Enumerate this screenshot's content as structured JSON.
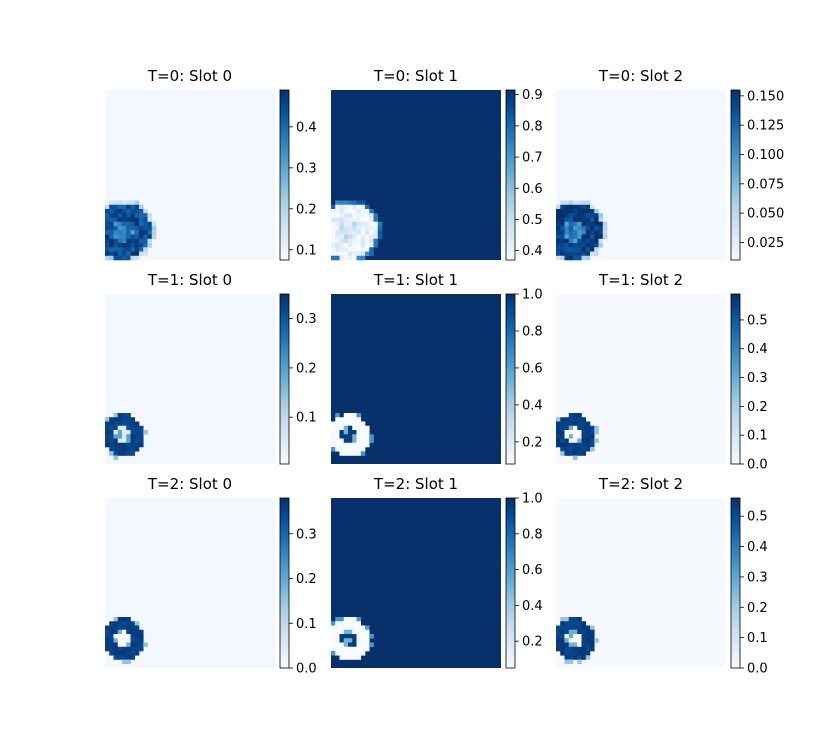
{
  "chart_data": [
    {
      "type": "heatmap",
      "title": "T=0: Slot 0",
      "colormap": "Blues",
      "colorbar_range": [
        0.075,
        0.49
      ],
      "colorbar_ticks": [
        0.1,
        0.2,
        0.3,
        0.4
      ],
      "colorbar_tick_labels": [
        "0.1",
        "0.2",
        "0.3",
        "0.4"
      ],
      "background_value": 0.085,
      "ring_value": 0.45,
      "ring_interior_value": 0.36,
      "blob_style": "soft"
    },
    {
      "type": "heatmap",
      "title": "T=0: Slot 1",
      "colormap": "Blues",
      "colorbar_range": [
        0.37,
        0.915
      ],
      "colorbar_ticks": [
        0.4,
        0.5,
        0.6,
        0.7,
        0.8,
        0.9
      ],
      "colorbar_tick_labels": [
        "0.4",
        "0.5",
        "0.6",
        "0.7",
        "0.8",
        "0.9"
      ],
      "background_value": 0.915,
      "ring_value": 0.4,
      "ring_interior_value": 0.48,
      "blob_style": "soft"
    },
    {
      "type": "heatmap",
      "title": "T=0: Slot 2",
      "colormap": "Blues",
      "colorbar_range": [
        0.01,
        0.155
      ],
      "colorbar_ticks": [
        0.025,
        0.05,
        0.075,
        0.1,
        0.125,
        0.15
      ],
      "colorbar_tick_labels": [
        "0.025",
        "0.050",
        "0.075",
        "0.100",
        "0.125",
        "0.150"
      ],
      "background_value": 0.013,
      "ring_value": 0.15,
      "ring_interior_value": 0.11,
      "blob_style": "soft"
    },
    {
      "type": "heatmap",
      "title": "T=1: Slot 0",
      "colormap": "Blues",
      "colorbar_range": [
        0.005,
        0.35
      ],
      "colorbar_ticks": [
        0.1,
        0.2,
        0.3
      ],
      "colorbar_tick_labels": [
        "0.1",
        "0.2",
        "0.3"
      ],
      "background_value": 0.012,
      "ring_value": 0.34,
      "ring_interior_value": 0.05,
      "blob_style": "ring"
    },
    {
      "type": "heatmap",
      "title": "T=1: Slot 1",
      "colormap": "Blues",
      "colorbar_range": [
        0.08,
        1.0
      ],
      "colorbar_ticks": [
        0.2,
        0.4,
        0.6,
        0.8,
        1.0
      ],
      "colorbar_tick_labels": [
        "0.2",
        "0.4",
        "0.6",
        "0.8",
        "1.0"
      ],
      "background_value": 1.0,
      "ring_value": 0.09,
      "ring_interior_value": 0.95,
      "blob_style": "ring"
    },
    {
      "type": "heatmap",
      "title": "T=1: Slot 2",
      "colormap": "Blues",
      "colorbar_range": [
        0.0,
        0.59
      ],
      "colorbar_ticks": [
        0.0,
        0.1,
        0.2,
        0.3,
        0.4,
        0.5
      ],
      "colorbar_tick_labels": [
        "0.0",
        "0.1",
        "0.2",
        "0.3",
        "0.4",
        "0.5"
      ],
      "background_value": 0.004,
      "ring_value": 0.58,
      "ring_interior_value": 0.0,
      "blob_style": "ring"
    },
    {
      "type": "heatmap",
      "title": "T=2: Slot 0",
      "colormap": "Blues",
      "colorbar_range": [
        0.0,
        0.38
      ],
      "colorbar_ticks": [
        0.0,
        0.1,
        0.2,
        0.3
      ],
      "colorbar_tick_labels": [
        "0.0",
        "0.1",
        "0.2",
        "0.3"
      ],
      "background_value": 0.01,
      "ring_value": 0.37,
      "ring_interior_value": 0.0,
      "blob_style": "ring"
    },
    {
      "type": "heatmap",
      "title": "T=2: Slot 1",
      "colormap": "Blues",
      "colorbar_range": [
        0.05,
        1.0
      ],
      "colorbar_ticks": [
        0.2,
        0.4,
        0.6,
        0.8,
        1.0
      ],
      "colorbar_tick_labels": [
        "0.2",
        "0.4",
        "0.6",
        "0.8",
        "1.0"
      ],
      "background_value": 1.0,
      "ring_value": 0.06,
      "ring_interior_value": 0.95,
      "blob_style": "ring"
    },
    {
      "type": "heatmap",
      "title": "T=2: Slot 2",
      "colormap": "Blues",
      "colorbar_range": [
        0.0,
        0.56
      ],
      "colorbar_ticks": [
        0.0,
        0.1,
        0.2,
        0.3,
        0.4,
        0.5
      ],
      "colorbar_tick_labels": [
        "0.0",
        "0.1",
        "0.2",
        "0.3",
        "0.4",
        "0.5"
      ],
      "background_value": 0.004,
      "ring_value": 0.55,
      "ring_interior_value": 0.0,
      "blob_style": "ring"
    }
  ]
}
